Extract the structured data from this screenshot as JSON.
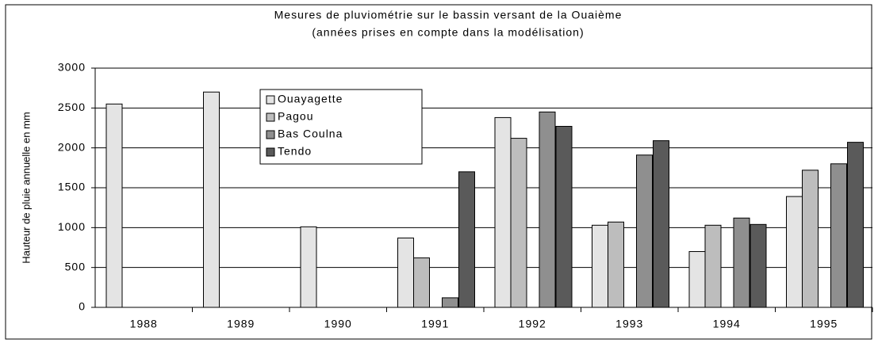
{
  "chart_data": {
    "type": "bar",
    "title": "Mesures de pluviométrie sur le bassin versant de la Ouaième",
    "subtitle": "(années prises en compte dans la modélisation)",
    "y_label": "Hauteur de pluie annuelle en mm",
    "categories": [
      "1988",
      "1989",
      "1990",
      "1991",
      "1992",
      "1993",
      "1994",
      "1995"
    ],
    "series": [
      {
        "name": "Ouayagette",
        "color": "#e4e4e4",
        "values": [
          2550,
          2700,
          1010,
          870,
          2380,
          1030,
          700,
          1390
        ]
      },
      {
        "name": "Pagou",
        "color": "#bdbdbd",
        "values": [
          null,
          null,
          null,
          620,
          2120,
          1070,
          1030,
          1720
        ]
      },
      {
        "name": "Bas Coulna",
        "color": "#8f8f8f",
        "values": [
          null,
          null,
          null,
          120,
          2450,
          1910,
          1120,
          1800
        ]
      },
      {
        "name": "Tendo",
        "color": "#5a5a5a",
        "values": [
          null,
          null,
          null,
          1700,
          2270,
          2090,
          1040,
          2070
        ]
      }
    ],
    "ylim": [
      0,
      3000
    ],
    "yticks": [
      0,
      500,
      1000,
      1500,
      2000,
      2500,
      3000
    ],
    "grid": true
  }
}
